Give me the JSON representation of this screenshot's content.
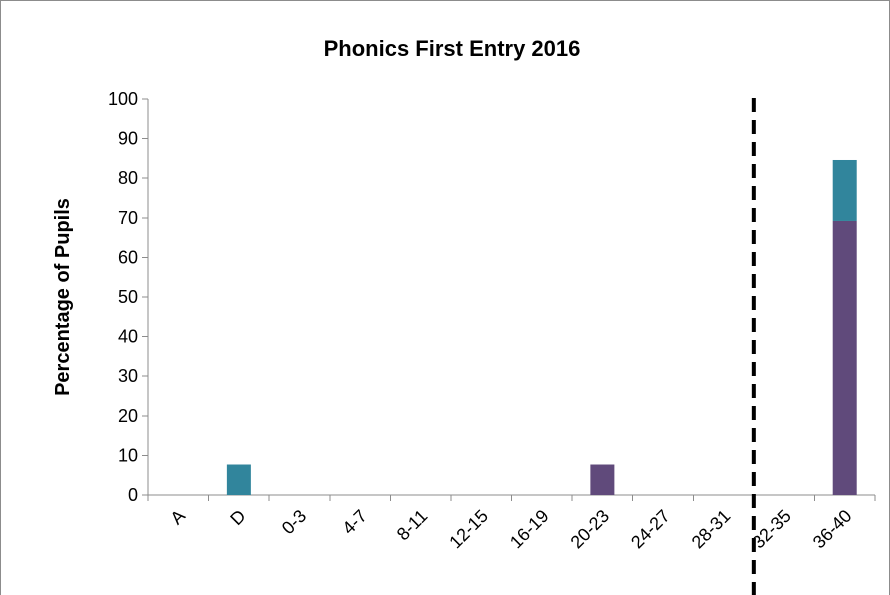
{
  "chart_data": {
    "type": "bar",
    "stacked": true,
    "title": "Phonics First Entry 2016",
    "xlabel": "",
    "ylabel": "Percentage of Pupils",
    "ylim": [
      0,
      100
    ],
    "yticks": [
      0,
      10,
      20,
      30,
      40,
      50,
      60,
      70,
      80,
      90,
      100
    ],
    "categories": [
      "A",
      "D",
      "0-3",
      "4-7",
      "8-11",
      "12-15",
      "16-19",
      "20-23",
      "24-27",
      "28-31",
      "32-35",
      "36-40"
    ],
    "series": [
      {
        "color": "#604a7b",
        "values": [
          0,
          0,
          0,
          0,
          0,
          0,
          0,
          7.7,
          0,
          0,
          0,
          69.2
        ]
      },
      {
        "color": "#31859c",
        "values": [
          0,
          7.7,
          0,
          0,
          0,
          0,
          0,
          0,
          0,
          0,
          0,
          15.4
        ]
      }
    ],
    "reference_line": {
      "between_categories": [
        "28-31",
        "32-35"
      ],
      "style": "dashed",
      "color": "#000000"
    },
    "grid": false,
    "legend": "none"
  }
}
